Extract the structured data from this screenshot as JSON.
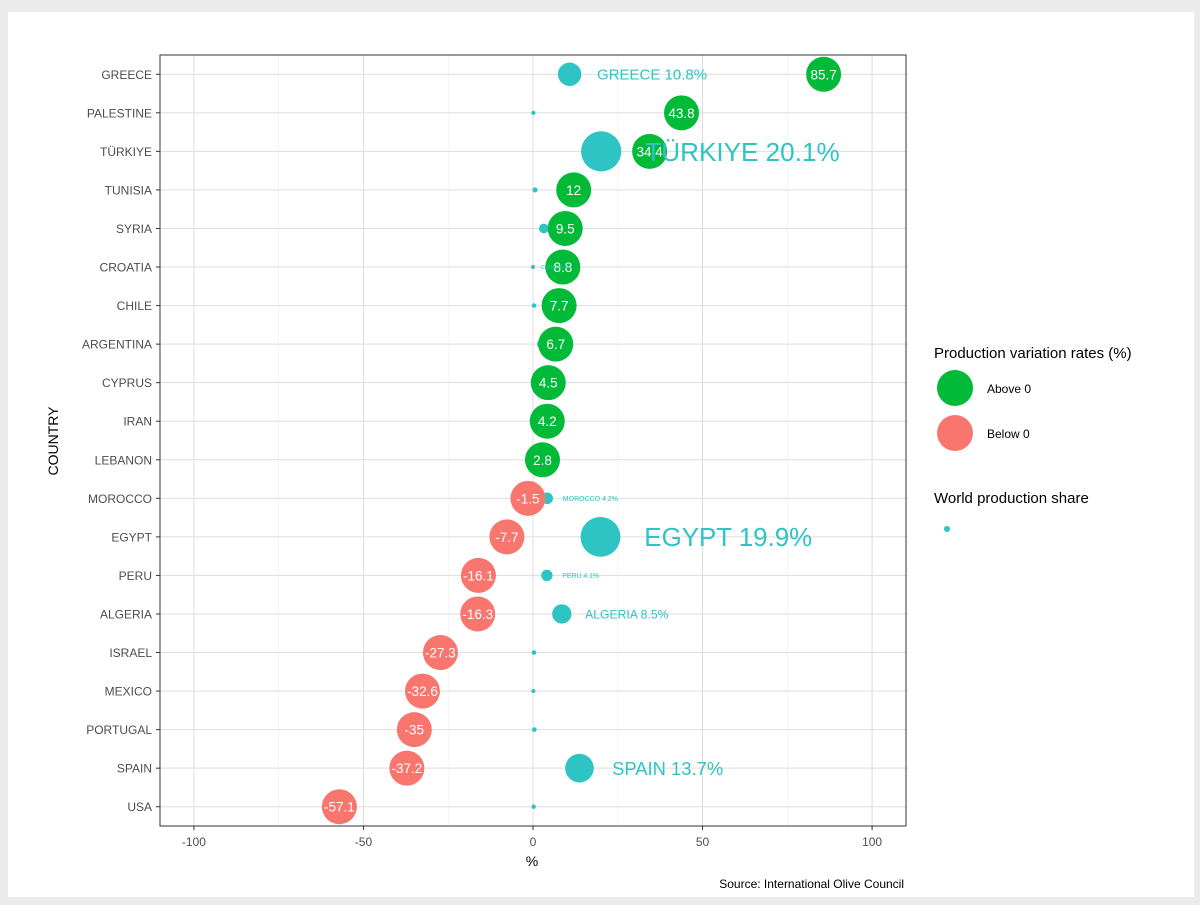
{
  "chart_data": {
    "type": "scatter",
    "xlabel": "%",
    "ylabel": "COUNTRY",
    "xlim": [
      -110,
      110
    ],
    "xticks": [
      -100,
      -50,
      0,
      50,
      100
    ],
    "xtick_labels": [
      "-100",
      "-50",
      "0",
      "50",
      "100"
    ],
    "grid": true,
    "legend_position": "right",
    "caption": "Source: International Olive Council",
    "colors": {
      "above": "#00ba38",
      "below": "#f8766d",
      "share": "#2ec4c4"
    },
    "legend": {
      "variation_title": "Production variation rates (%)",
      "above_label": "Above 0",
      "below_label": "Below 0",
      "share_title": "World production share"
    },
    "countries": [
      "GREECE",
      "PALESTINE",
      "TÜRKIYE",
      "TUNISIA",
      "SYRIA",
      "CROATIA",
      "CHILE",
      "ARGENTINA",
      "CYPRUS",
      "IRAN",
      "LEBANON",
      "MOROCCO",
      "EGYPT",
      "PERU",
      "ALGERIA",
      "ISRAEL",
      "MEXICO",
      "PORTUGAL",
      "SPAIN",
      "USA"
    ],
    "series": [
      {
        "name": "Production variation rates (%)",
        "values": [
          85.7,
          43.8,
          34.4,
          12,
          9.5,
          8.8,
          7.7,
          6.7,
          4.5,
          4.2,
          2.8,
          -1.5,
          -7.7,
          -16.1,
          -16.3,
          -27.3,
          -32.6,
          -35,
          -37.2,
          -57.1
        ],
        "labels": [
          "85.7",
          "43.8",
          "34.4",
          "12",
          "9.5",
          "8.8",
          "7.7",
          "6.7",
          "4.5",
          "4.2",
          "2.8",
          "-1.5",
          "-7.7",
          "-16.1",
          "-16.3",
          "-27.3",
          "-32.6",
          "-35",
          "-37.2",
          "-57.1"
        ]
      },
      {
        "name": "World production share",
        "values": [
          10.8,
          0.1,
          20.1,
          0.6,
          3.2,
          0,
          0.3,
          2.4,
          0.1,
          0.1,
          0.1,
          4.2,
          19.9,
          4.1,
          8.5,
          0.3,
          0.1,
          0.4,
          13.7,
          0.2
        ],
        "labels": [
          "GREECE 10.8%",
          "",
          "TÜRKIYE 20.1%",
          "",
          "",
          "CROATIA 0%",
          "",
          "",
          "",
          "",
          "",
          "MOROCCO 4.2%",
          "EGYPT 19.9%",
          "PERU 4.1%",
          "ALGERIA 8.5%",
          "",
          "",
          "",
          "SPAIN 13.7%",
          ""
        ]
      }
    ]
  }
}
